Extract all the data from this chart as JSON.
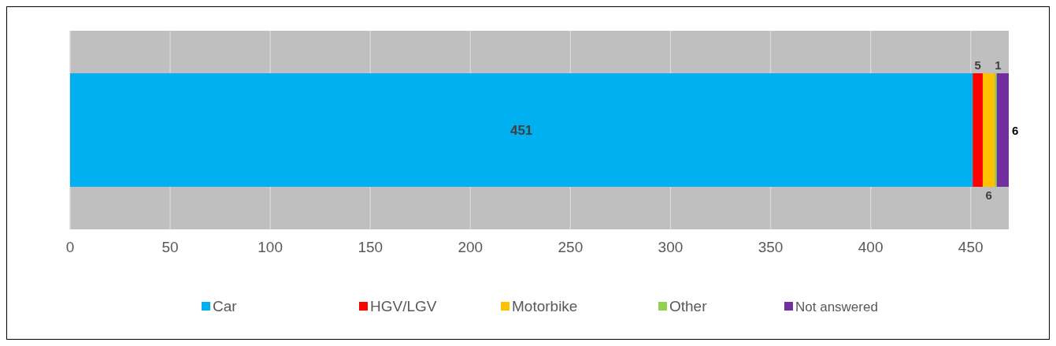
{
  "chart_data": {
    "type": "bar",
    "orientation": "horizontal",
    "stacked": true,
    "categories": [
      null
    ],
    "series": [
      {
        "name": "Car",
        "color": "#00b0f0",
        "values": [
          451
        ]
      },
      {
        "name": "HGV/LGV",
        "color": "#ff0000",
        "values": [
          5
        ]
      },
      {
        "name": "Motorbike",
        "color": "#ffc000",
        "values": [
          6
        ]
      },
      {
        "name": "Other",
        "color": "#92d050",
        "values": [
          1
        ]
      },
      {
        "name": "Not answered",
        "color": "#7030a0",
        "values": [
          6
        ]
      }
    ],
    "xlim": [
      0,
      469
    ],
    "xticks": [
      0,
      50,
      100,
      150,
      200,
      250,
      300,
      350,
      400,
      450
    ],
    "grid": "x",
    "legend": "bottom",
    "data_labels": true
  }
}
